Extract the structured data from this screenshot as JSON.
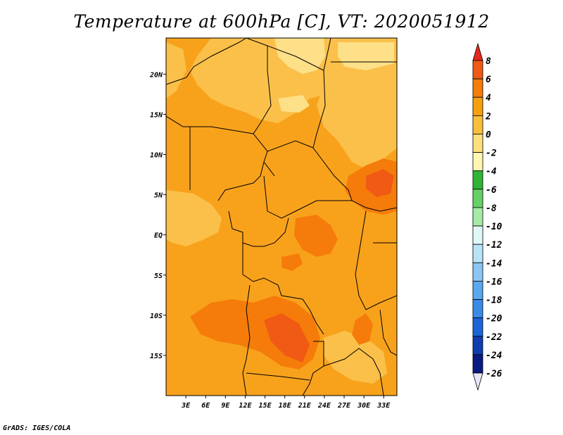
{
  "title": "Temperature at 600hPa [C], VT: 2020051912",
  "footer": "GrADS: IGES/COLA",
  "map": {
    "variable": "Temperature at 600hPa",
    "units": "C",
    "valid_time": "2020051912",
    "lon_range": [
      0,
      35
    ],
    "lat_range": [
      -20,
      24.5
    ],
    "x_ticks": [
      {
        "value": 3,
        "label": "3E"
      },
      {
        "value": 6,
        "label": "6E"
      },
      {
        "value": 9,
        "label": "9E"
      },
      {
        "value": 12,
        "label": "12E"
      },
      {
        "value": 15,
        "label": "15E"
      },
      {
        "value": 18,
        "label": "18E"
      },
      {
        "value": 21,
        "label": "21E"
      },
      {
        "value": 24,
        "label": "24E"
      },
      {
        "value": 27,
        "label": "27E"
      },
      {
        "value": 30,
        "label": "30E"
      },
      {
        "value": 33,
        "label": "33E"
      }
    ],
    "y_ticks": [
      {
        "value": 20,
        "label": "20N"
      },
      {
        "value": 15,
        "label": "15N"
      },
      {
        "value": 10,
        "label": "10N"
      },
      {
        "value": 5,
        "label": "5N"
      },
      {
        "value": 0,
        "label": "EQ"
      },
      {
        "value": -5,
        "label": "5S"
      },
      {
        "value": -10,
        "label": "10S"
      },
      {
        "value": -15,
        "label": "15S"
      }
    ]
  },
  "colorbar": {
    "labels": [
      "8",
      "6",
      "4",
      "2",
      "0",
      "-2",
      "-4",
      "-6",
      "-8",
      "-10",
      "-12",
      "-14",
      "-16",
      "-18",
      "-20",
      "-22",
      "-24",
      "-26"
    ],
    "colors": [
      "#e8281e",
      "#f05a14",
      "#f57c0a",
      "#f7a00e",
      "#f9bf3a",
      "#fce07a",
      "#fff7b0",
      "#30b435",
      "#66d066",
      "#a6eaa6",
      "#e0f8f8",
      "#b8e4f8",
      "#8ac6f4",
      "#5aa8ee",
      "#3a8ae8",
      "#1d64d8",
      "#0f3cb0",
      "#0a1a80",
      "#e6e6f7"
    ]
  },
  "fields": {
    "base_color": "#f8a21c",
    "light_color": "#fbc04a",
    "lighter_color": "#fde088",
    "warm_color": "#f57c0a",
    "hot_color": "#f05a14",
    "border_color": "#000000"
  }
}
